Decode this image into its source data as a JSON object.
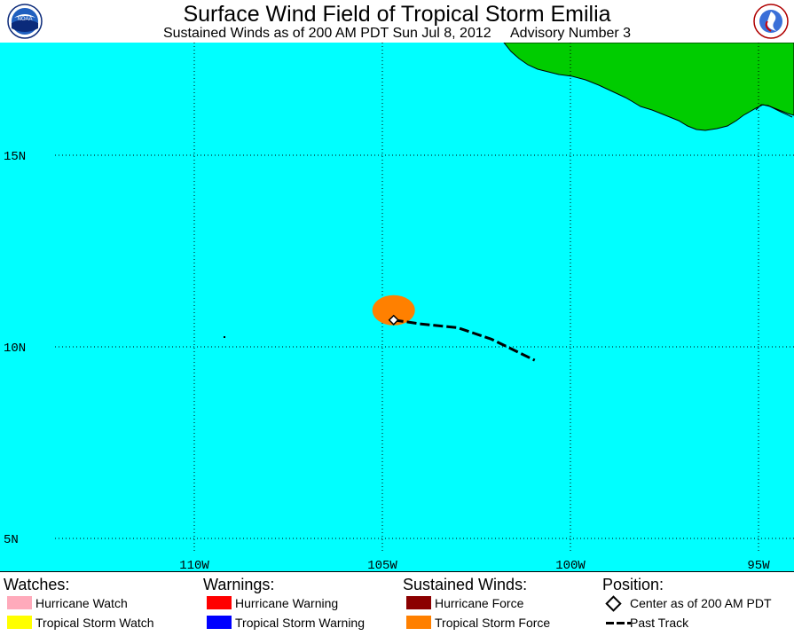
{
  "header": {
    "title": "Surface Wind Field of Tropical Storm Emilia",
    "subtitle": "Sustained Winds as of 200 AM PDT Sun Jul 8, 2012     Advisory Number 3"
  },
  "logos": {
    "left": "noaa-logo",
    "right": "national-weather-service-logo"
  },
  "map": {
    "ocean_color": "#00ffff",
    "land_color": "#00cc00",
    "lat_labels": [
      "15N",
      "10N",
      "5N"
    ],
    "lon_labels": [
      "110W",
      "105W",
      "100W",
      "95W"
    ],
    "lat_values": [
      15,
      10,
      5
    ],
    "lon_values": [
      -110,
      -105,
      -100,
      -95
    ],
    "storm_center": {
      "lat": 10.7,
      "lon": -104.7
    },
    "past_track": [
      {
        "lat": 10.7,
        "lon": -104.7
      },
      {
        "lat": 10.6,
        "lon": -104.0
      },
      {
        "lat": 10.5,
        "lon": -103.0
      },
      {
        "lat": 10.2,
        "lon": -102.1
      },
      {
        "lat": 9.65,
        "lon": -100.95
      }
    ],
    "tropical_storm_wind_color": "#ff8000"
  },
  "legend": {
    "watches": {
      "heading": "Watches:",
      "items": [
        {
          "label": "Hurricane Watch",
          "color": "#ffaabb"
        },
        {
          "label": "Tropical Storm Watch",
          "color": "#ffff00"
        }
      ]
    },
    "warnings": {
      "heading": "Warnings:",
      "items": [
        {
          "label": "Hurricane Warning",
          "color": "#ff0000"
        },
        {
          "label": "Tropical Storm Warning",
          "color": "#0000ff"
        }
      ]
    },
    "sustained_winds": {
      "heading": "Sustained Winds:",
      "items": [
        {
          "label": "Hurricane Force",
          "color": "#8b0000"
        },
        {
          "label": "Tropical Storm Force",
          "color": "#ff8000"
        }
      ]
    },
    "position": {
      "heading": "Position:",
      "items": [
        {
          "label": "Center as of 200 AM PDT",
          "icon": "diamond-icon"
        },
        {
          "label": "Past Track",
          "icon": "dashed-line-icon"
        }
      ]
    }
  }
}
